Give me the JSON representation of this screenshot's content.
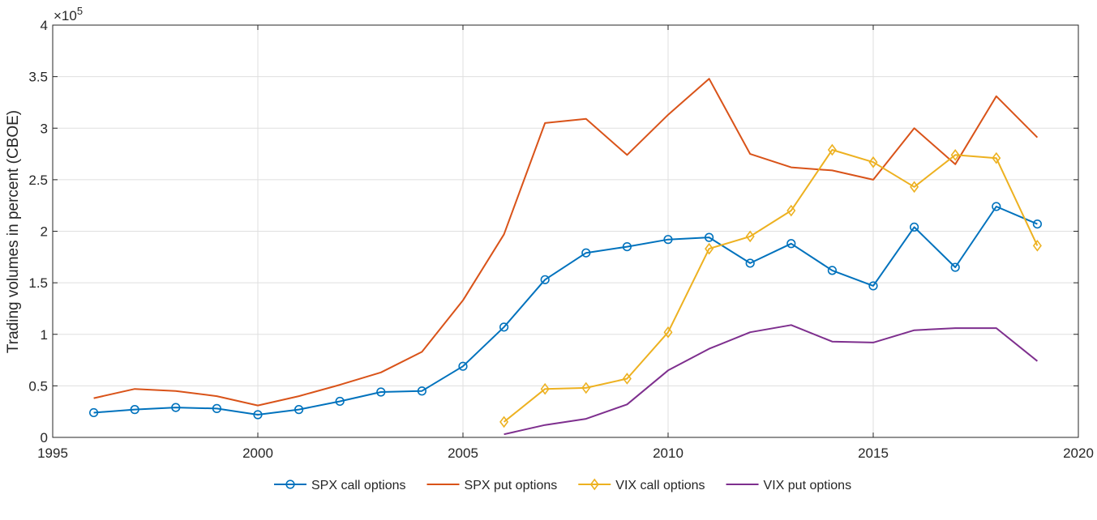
{
  "chart_data": {
    "type": "line",
    "title": "",
    "xlabel": "",
    "ylabel": "Trading volumes in percent (CBOE)",
    "y_multiplier_label": "×10",
    "y_multiplier_exponent": "5",
    "xlim": [
      1995,
      2020
    ],
    "ylim": [
      0,
      4
    ],
    "x_ticks": [
      1995,
      2000,
      2005,
      2010,
      2015,
      2020
    ],
    "y_ticks": [
      0,
      0.5,
      1,
      1.5,
      2,
      2.5,
      3,
      3.5,
      4
    ],
    "y_tick_labels": [
      "0",
      "0.5",
      "1",
      "1.5",
      "2",
      "2.5",
      "3",
      "3.5",
      "4"
    ],
    "grid": true,
    "legend_position": "bottom",
    "series": [
      {
        "name": "SPX call options",
        "color": "#0072BD",
        "marker": "circle",
        "x": [
          1996,
          1997,
          1998,
          1999,
          2000,
          2001,
          2002,
          2003,
          2004,
          2005,
          2006,
          2007,
          2008,
          2009,
          2010,
          2011,
          2012,
          2013,
          2014,
          2015,
          2016,
          2017,
          2018,
          2019
        ],
        "y": [
          0.24,
          0.27,
          0.29,
          0.28,
          0.22,
          0.27,
          0.35,
          0.44,
          0.45,
          0.69,
          1.07,
          1.53,
          1.79,
          1.85,
          1.92,
          1.94,
          1.69,
          1.88,
          1.62,
          1.47,
          2.04,
          1.65,
          2.24,
          2.07
        ]
      },
      {
        "name": "SPX put options",
        "color": "#D95319",
        "marker": "none",
        "x": [
          1996,
          1997,
          1998,
          1999,
          2000,
          2001,
          2002,
          2003,
          2004,
          2005,
          2006,
          2007,
          2008,
          2009,
          2010,
          2011,
          2012,
          2013,
          2014,
          2015,
          2016,
          2017,
          2018,
          2019
        ],
        "y": [
          0.38,
          0.47,
          0.45,
          0.4,
          0.31,
          0.4,
          0.51,
          0.63,
          0.83,
          1.33,
          1.97,
          3.05,
          3.09,
          2.74,
          3.13,
          3.48,
          2.75,
          2.62,
          2.59,
          2.5,
          3.0,
          2.65,
          3.31,
          2.91
        ]
      },
      {
        "name": "VIX call options",
        "color": "#EDB120",
        "marker": "diamond",
        "x": [
          2006,
          2007,
          2008,
          2009,
          2010,
          2011,
          2012,
          2013,
          2014,
          2015,
          2016,
          2017,
          2018,
          2019
        ],
        "y": [
          0.15,
          0.47,
          0.48,
          0.57,
          1.02,
          1.83,
          1.95,
          2.2,
          2.79,
          2.67,
          2.43,
          2.74,
          2.71,
          1.86
        ]
      },
      {
        "name": "VIX put options",
        "color": "#7E2F8E",
        "marker": "none",
        "x": [
          2006,
          2007,
          2008,
          2009,
          2010,
          2011,
          2012,
          2013,
          2014,
          2015,
          2016,
          2017,
          2018,
          2019
        ],
        "y": [
          0.03,
          0.12,
          0.18,
          0.32,
          0.65,
          0.86,
          1.02,
          1.09,
          0.93,
          0.92,
          1.04,
          1.06,
          1.06,
          0.74
        ]
      }
    ]
  }
}
